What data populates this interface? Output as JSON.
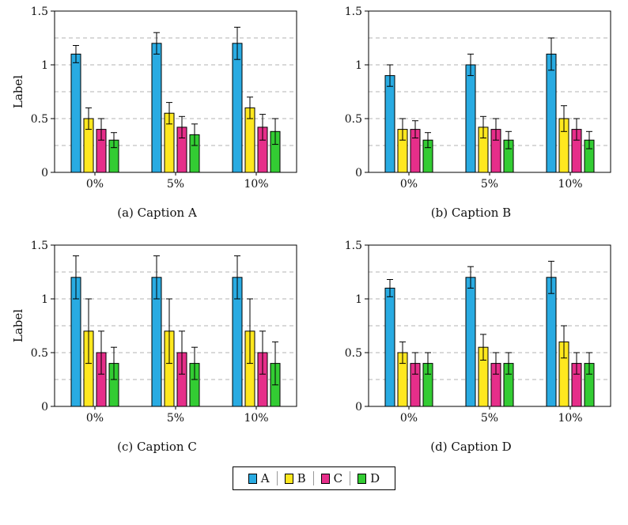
{
  "figure": {
    "series_names": [
      "A",
      "B",
      "C",
      "D"
    ],
    "series_colors": [
      "#29ABE2",
      "#FFE81F",
      "#E62E8A",
      "#33CC33"
    ],
    "legend": {
      "labels": [
        "A",
        "B",
        "C",
        "D"
      ]
    },
    "grid_color": "#b3b3b3",
    "axis_color": "#000000",
    "background": "#ffffff"
  },
  "chart_data": [
    {
      "type": "bar",
      "caption": "(a) Caption A",
      "ylabel": "Label",
      "categories": [
        "0%",
        "5%",
        "10%"
      ],
      "ylim": [
        0,
        1.5
      ],
      "yticks": [
        0,
        0.5,
        1,
        1.5
      ],
      "ytick_labels": [
        "0",
        "0.5",
        "1",
        "1.5"
      ],
      "gridlines": [
        0.25,
        0.5,
        0.75,
        1,
        1.25
      ],
      "legend_position": "none",
      "grid": "dashed-horizontal",
      "series": [
        {
          "name": "A",
          "values": [
            1.1,
            1.2,
            1.2
          ],
          "errors": [
            0.08,
            0.1,
            0.15
          ]
        },
        {
          "name": "B",
          "values": [
            0.5,
            0.55,
            0.6
          ],
          "errors": [
            0.1,
            0.1,
            0.1
          ]
        },
        {
          "name": "C",
          "values": [
            0.4,
            0.42,
            0.42
          ],
          "errors": [
            0.1,
            0.1,
            0.12
          ]
        },
        {
          "name": "D",
          "values": [
            0.3,
            0.35,
            0.38
          ],
          "errors": [
            0.07,
            0.1,
            0.12
          ]
        }
      ]
    },
    {
      "type": "bar",
      "caption": "(b) Caption B",
      "ylabel": "",
      "categories": [
        "0%",
        "5%",
        "10%"
      ],
      "ylim": [
        0,
        1.5
      ],
      "yticks": [
        0,
        0.5,
        1,
        1.5
      ],
      "ytick_labels": [
        "0",
        "0.5",
        "1",
        "1.5"
      ],
      "gridlines": [
        0.25,
        0.5,
        0.75,
        1,
        1.25
      ],
      "legend_position": "none",
      "grid": "dashed-horizontal",
      "series": [
        {
          "name": "A",
          "values": [
            0.9,
            1.0,
            1.1
          ],
          "errors": [
            0.1,
            0.1,
            0.15
          ]
        },
        {
          "name": "B",
          "values": [
            0.4,
            0.42,
            0.5
          ],
          "errors": [
            0.1,
            0.1,
            0.12
          ]
        },
        {
          "name": "C",
          "values": [
            0.4,
            0.4,
            0.4
          ],
          "errors": [
            0.08,
            0.1,
            0.1
          ]
        },
        {
          "name": "D",
          "values": [
            0.3,
            0.3,
            0.3
          ],
          "errors": [
            0.07,
            0.08,
            0.08
          ]
        }
      ]
    },
    {
      "type": "bar",
      "caption": "(c) Caption C",
      "ylabel": "Label",
      "categories": [
        "0%",
        "5%",
        "10%"
      ],
      "ylim": [
        0,
        1.5
      ],
      "yticks": [
        0,
        0.5,
        1,
        1.5
      ],
      "ytick_labels": [
        "0",
        "0.5",
        "1",
        "1.5"
      ],
      "gridlines": [
        0.25,
        0.5,
        0.75,
        1,
        1.25
      ],
      "legend_position": "none",
      "grid": "dashed-horizontal",
      "series": [
        {
          "name": "A",
          "values": [
            1.2,
            1.2,
            1.2
          ],
          "errors": [
            0.2,
            0.2,
            0.2
          ]
        },
        {
          "name": "B",
          "values": [
            0.7,
            0.7,
            0.7
          ],
          "errors": [
            0.3,
            0.3,
            0.3
          ]
        },
        {
          "name": "C",
          "values": [
            0.5,
            0.5,
            0.5
          ],
          "errors": [
            0.2,
            0.2,
            0.2
          ]
        },
        {
          "name": "D",
          "values": [
            0.4,
            0.4,
            0.4
          ],
          "errors": [
            0.15,
            0.15,
            0.2
          ]
        }
      ]
    },
    {
      "type": "bar",
      "caption": "(d) Caption D",
      "ylabel": "",
      "categories": [
        "0%",
        "5%",
        "10%"
      ],
      "ylim": [
        0,
        1.5
      ],
      "yticks": [
        0,
        0.5,
        1,
        1.5
      ],
      "ytick_labels": [
        "0",
        "0.5",
        "1",
        "1.5"
      ],
      "gridlines": [
        0.25,
        0.5,
        0.75,
        1,
        1.25
      ],
      "legend_position": "none",
      "grid": "dashed-horizontal",
      "series": [
        {
          "name": "A",
          "values": [
            1.1,
            1.2,
            1.2
          ],
          "errors": [
            0.08,
            0.1,
            0.15
          ]
        },
        {
          "name": "B",
          "values": [
            0.5,
            0.55,
            0.6
          ],
          "errors": [
            0.1,
            0.12,
            0.15
          ]
        },
        {
          "name": "C",
          "values": [
            0.4,
            0.4,
            0.4
          ],
          "errors": [
            0.1,
            0.1,
            0.1
          ]
        },
        {
          "name": "D",
          "values": [
            0.4,
            0.4,
            0.4
          ],
          "errors": [
            0.1,
            0.1,
            0.1
          ]
        }
      ]
    }
  ]
}
